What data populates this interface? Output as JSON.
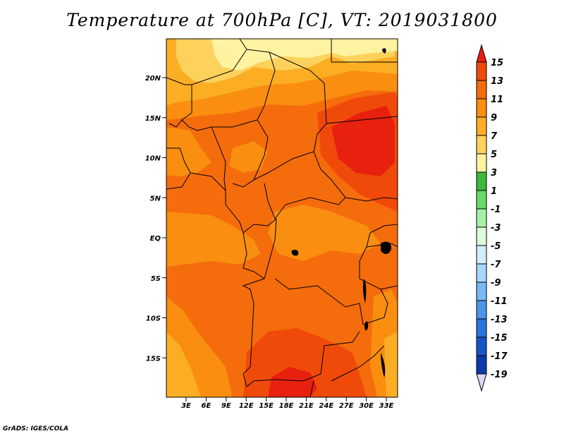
{
  "title": "Temperature at 700hPa [C], VT: 2019031800",
  "credit": "GrADS: IGES/COLA",
  "lat_labels": [
    "20N",
    "15N",
    "10N",
    "5N",
    "EQ",
    "5S",
    "10S",
    "15S"
  ],
  "lon_labels": [
    "3E",
    "6E",
    "9E",
    "12E",
    "15E",
    "18E",
    "21E",
    "24E",
    "27E",
    "30E",
    "33E"
  ],
  "colorbar": {
    "levels": [
      "15",
      "13",
      "11",
      "9",
      "7",
      "5",
      "3",
      "1",
      "-1",
      "-3",
      "-5",
      "-7",
      "-9",
      "-11",
      "-13",
      "-15",
      "-17",
      "-19"
    ],
    "colors": [
      "#e8200e",
      "#f04a0a",
      "#f56c0c",
      "#f98e10",
      "#fbae24",
      "#fdd25c",
      "#fff2a0",
      "#3cba3c",
      "#6ad96a",
      "#a6f0a6",
      "#dcfadc",
      "#d2ecfc",
      "#a8d6fa",
      "#78baf4",
      "#4b96ea",
      "#2a74dc",
      "#1756c8",
      "#0c3aaa",
      "#0a1f70"
    ],
    "bottom_arrow_color": "#d8d8f8"
  },
  "map_colors": {
    "base": "#f56c0c",
    "warm": "#f04a0a",
    "hot": "#e8200e",
    "mild": "#f98e10",
    "cool": "#fbae24",
    "cooler": "#fdd25c",
    "coolest": "#fff2a0"
  }
}
